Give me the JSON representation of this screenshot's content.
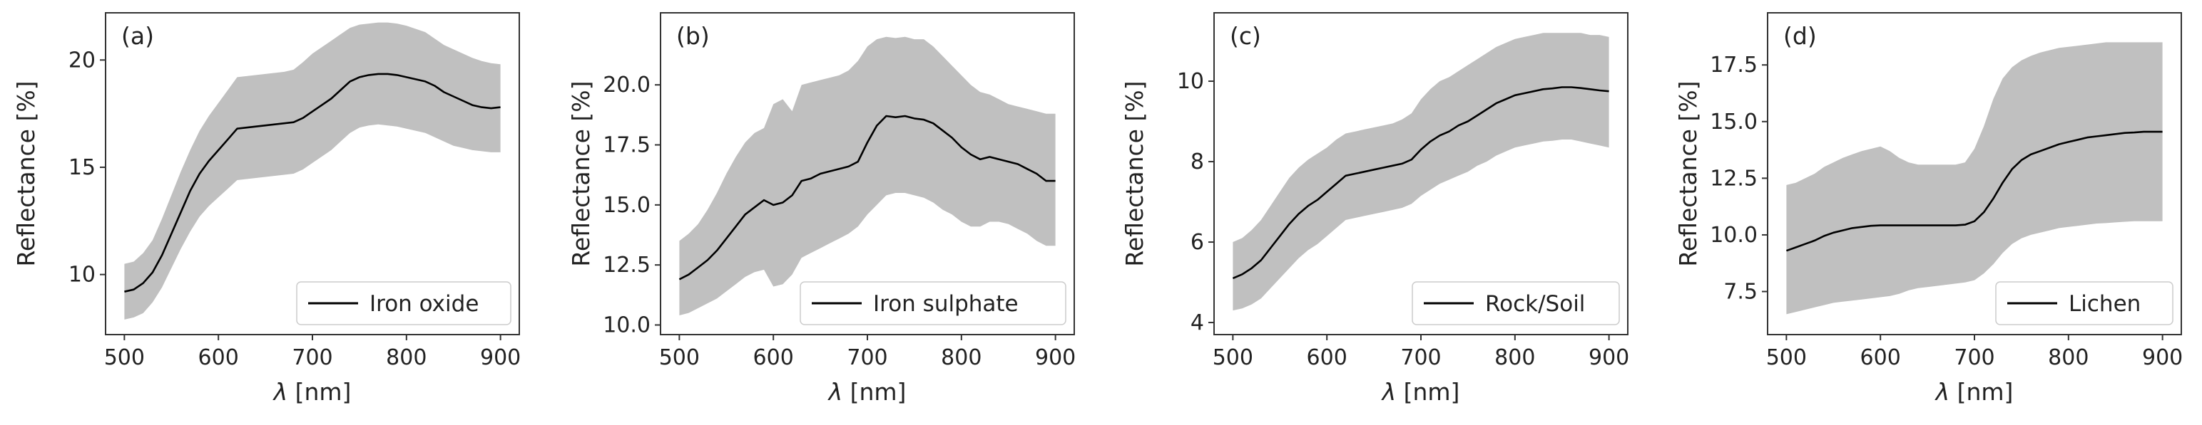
{
  "figure": {
    "colors": {
      "band": "#c0c0c0",
      "line": "#000000",
      "frame": "#333333",
      "legend_frame": "#cccccc"
    }
  },
  "chart_data": [
    {
      "type": "line",
      "panel_tag": "(a)",
      "xlabel_symbol": "λ",
      "xlabel_unit": " [nm]",
      "ylabel": "Reflectance [%]",
      "legend": [
        "Iron oxide"
      ],
      "legend_position": "lower-right",
      "xlim": [
        480,
        920
      ],
      "ylim": [
        7.2,
        22.2
      ],
      "xticks": [
        500,
        600,
        700,
        800,
        900
      ],
      "xtick_labels": [
        "500",
        "600",
        "700",
        "800",
        "900"
      ],
      "yticks": [
        10,
        15,
        20
      ],
      "ytick_labels": [
        "10",
        "15",
        "20"
      ],
      "x": [
        500,
        510,
        520,
        530,
        540,
        550,
        560,
        570,
        580,
        590,
        600,
        610,
        620,
        630,
        640,
        650,
        660,
        670,
        680,
        690,
        700,
        710,
        720,
        730,
        740,
        750,
        760,
        770,
        780,
        790,
        800,
        810,
        820,
        830,
        840,
        850,
        860,
        870,
        880,
        890,
        900
      ],
      "series": [
        {
          "name": "Iron oxide",
          "values": [
            9.2,
            9.3,
            9.6,
            10.1,
            10.9,
            11.9,
            12.9,
            13.9,
            14.7,
            15.3,
            15.8,
            16.3,
            16.8,
            16.85,
            16.9,
            16.95,
            17.0,
            17.05,
            17.1,
            17.3,
            17.6,
            17.9,
            18.2,
            18.6,
            19.0,
            19.2,
            19.3,
            19.35,
            19.35,
            19.3,
            19.2,
            19.1,
            19.0,
            18.8,
            18.5,
            18.3,
            18.1,
            17.9,
            17.8,
            17.75,
            17.8
          ]
        }
      ],
      "band_upper": [
        10.5,
        10.6,
        11.0,
        11.6,
        12.6,
        13.7,
        14.8,
        15.8,
        16.7,
        17.4,
        18.0,
        18.6,
        19.2,
        19.25,
        19.3,
        19.35,
        19.4,
        19.45,
        19.55,
        19.9,
        20.3,
        20.6,
        20.9,
        21.2,
        21.5,
        21.65,
        21.7,
        21.75,
        21.75,
        21.7,
        21.6,
        21.45,
        21.3,
        21.0,
        20.7,
        20.5,
        20.3,
        20.1,
        19.95,
        19.85,
        19.8
      ],
      "band_lower": [
        7.9,
        8.0,
        8.2,
        8.7,
        9.4,
        10.3,
        11.2,
        12.0,
        12.7,
        13.2,
        13.6,
        14.0,
        14.4,
        14.45,
        14.5,
        14.55,
        14.6,
        14.65,
        14.7,
        14.9,
        15.2,
        15.5,
        15.8,
        16.2,
        16.6,
        16.85,
        16.95,
        17.0,
        16.95,
        16.9,
        16.8,
        16.7,
        16.6,
        16.4,
        16.2,
        16.0,
        15.9,
        15.8,
        15.75,
        15.7,
        15.7
      ]
    },
    {
      "type": "line",
      "panel_tag": "(b)",
      "xlabel_symbol": "λ",
      "xlabel_unit": " [nm]",
      "ylabel": "Reflectance [%]",
      "legend": [
        "Iron sulphate"
      ],
      "legend_position": "lower-right",
      "xlim": [
        480,
        920
      ],
      "ylim": [
        9.6,
        23.0
      ],
      "xticks": [
        500,
        600,
        700,
        800,
        900
      ],
      "xtick_labels": [
        "500",
        "600",
        "700",
        "800",
        "900"
      ],
      "yticks": [
        10.0,
        12.5,
        15.0,
        17.5,
        20.0
      ],
      "ytick_labels": [
        "10.0",
        "12.5",
        "15.0",
        "17.5",
        "20.0"
      ],
      "x": [
        500,
        510,
        520,
        530,
        540,
        550,
        560,
        570,
        580,
        590,
        600,
        610,
        620,
        630,
        640,
        650,
        660,
        670,
        680,
        690,
        700,
        710,
        720,
        730,
        740,
        750,
        760,
        770,
        780,
        790,
        800,
        810,
        820,
        830,
        840,
        850,
        860,
        870,
        880,
        890,
        900
      ],
      "series": [
        {
          "name": "Iron sulphate",
          "values": [
            11.9,
            12.1,
            12.4,
            12.7,
            13.1,
            13.6,
            14.1,
            14.6,
            14.9,
            15.2,
            15.0,
            15.1,
            15.4,
            16.0,
            16.1,
            16.3,
            16.4,
            16.5,
            16.6,
            16.8,
            17.6,
            18.3,
            18.7,
            18.65,
            18.7,
            18.6,
            18.55,
            18.4,
            18.1,
            17.8,
            17.4,
            17.1,
            16.9,
            17.0,
            16.9,
            16.8,
            16.7,
            16.5,
            16.3,
            16.0,
            16.0
          ]
        }
      ],
      "band_upper": [
        13.5,
        13.8,
        14.2,
        14.8,
        15.5,
        16.3,
        17.0,
        17.6,
        18.0,
        18.2,
        19.2,
        19.4,
        18.9,
        20.0,
        20.1,
        20.2,
        20.3,
        20.4,
        20.6,
        21.0,
        21.6,
        21.9,
        22.0,
        21.95,
        22.0,
        21.9,
        21.9,
        21.6,
        21.2,
        20.8,
        20.4,
        20.0,
        19.7,
        19.6,
        19.4,
        19.2,
        19.1,
        19.0,
        18.9,
        18.8,
        18.8
      ],
      "band_lower": [
        10.4,
        10.5,
        10.7,
        10.9,
        11.1,
        11.4,
        11.7,
        12.0,
        12.2,
        12.3,
        11.6,
        11.7,
        12.1,
        12.8,
        13.0,
        13.2,
        13.4,
        13.6,
        13.8,
        14.1,
        14.6,
        15.0,
        15.4,
        15.5,
        15.5,
        15.4,
        15.3,
        15.1,
        14.8,
        14.6,
        14.3,
        14.1,
        14.1,
        14.3,
        14.3,
        14.2,
        14.0,
        13.8,
        13.5,
        13.3,
        13.3
      ]
    },
    {
      "type": "line",
      "panel_tag": "(c)",
      "xlabel_symbol": "λ",
      "xlabel_unit": " [nm]",
      "ylabel": "Reflectance [%]",
      "legend": [
        "Rock/Soil"
      ],
      "legend_position": "lower-right",
      "xlim": [
        480,
        920
      ],
      "ylim": [
        3.7,
        11.7
      ],
      "xticks": [
        500,
        600,
        700,
        800,
        900
      ],
      "xtick_labels": [
        "500",
        "600",
        "700",
        "800",
        "900"
      ],
      "yticks": [
        4,
        6,
        8,
        10
      ],
      "ytick_labels": [
        "4",
        "6",
        "8",
        "10"
      ],
      "x": [
        500,
        510,
        520,
        530,
        540,
        550,
        560,
        570,
        580,
        590,
        600,
        610,
        620,
        630,
        640,
        650,
        660,
        670,
        680,
        690,
        700,
        710,
        720,
        730,
        740,
        750,
        760,
        770,
        780,
        790,
        800,
        810,
        820,
        830,
        840,
        850,
        860,
        870,
        880,
        890,
        900
      ],
      "series": [
        {
          "name": "Rock/Soil",
          "values": [
            5.1,
            5.2,
            5.35,
            5.55,
            5.85,
            6.15,
            6.45,
            6.7,
            6.9,
            7.05,
            7.25,
            7.45,
            7.65,
            7.7,
            7.75,
            7.8,
            7.85,
            7.9,
            7.95,
            8.05,
            8.3,
            8.5,
            8.65,
            8.75,
            8.9,
            9.0,
            9.15,
            9.3,
            9.45,
            9.55,
            9.65,
            9.7,
            9.75,
            9.8,
            9.82,
            9.85,
            9.85,
            9.83,
            9.8,
            9.77,
            9.75
          ]
        }
      ],
      "band_upper": [
        6.0,
        6.1,
        6.3,
        6.55,
        6.9,
        7.25,
        7.6,
        7.85,
        8.05,
        8.2,
        8.35,
        8.55,
        8.7,
        8.75,
        8.8,
        8.85,
        8.9,
        8.95,
        9.05,
        9.2,
        9.55,
        9.8,
        10.0,
        10.1,
        10.25,
        10.4,
        10.55,
        10.7,
        10.85,
        10.95,
        11.05,
        11.1,
        11.15,
        11.2,
        11.2,
        11.2,
        11.2,
        11.2,
        11.15,
        11.15,
        11.1
      ],
      "band_lower": [
        4.3,
        4.35,
        4.45,
        4.6,
        4.85,
        5.1,
        5.35,
        5.6,
        5.8,
        5.95,
        6.15,
        6.35,
        6.55,
        6.6,
        6.65,
        6.7,
        6.75,
        6.8,
        6.85,
        6.95,
        7.15,
        7.3,
        7.45,
        7.55,
        7.65,
        7.75,
        7.9,
        8.0,
        8.15,
        8.25,
        8.35,
        8.4,
        8.45,
        8.5,
        8.52,
        8.55,
        8.55,
        8.5,
        8.45,
        8.4,
        8.35
      ]
    },
    {
      "type": "line",
      "panel_tag": "(d)",
      "xlabel_symbol": "λ",
      "xlabel_unit": " [nm]",
      "ylabel": "Reflectance [%]",
      "legend": [
        "Lichen"
      ],
      "legend_position": "lower-right",
      "xlim": [
        480,
        920
      ],
      "ylim": [
        5.6,
        19.8
      ],
      "xticks": [
        500,
        600,
        700,
        800,
        900
      ],
      "xtick_labels": [
        "500",
        "600",
        "700",
        "800",
        "900"
      ],
      "yticks": [
        7.5,
        10.0,
        12.5,
        15.0,
        17.5
      ],
      "ytick_labels": [
        "7.5",
        "10.0",
        "12.5",
        "15.0",
        "17.5"
      ],
      "x": [
        500,
        510,
        520,
        530,
        540,
        550,
        560,
        570,
        580,
        590,
        600,
        610,
        620,
        630,
        640,
        650,
        660,
        670,
        680,
        690,
        700,
        710,
        720,
        730,
        740,
        750,
        760,
        770,
        780,
        790,
        800,
        810,
        820,
        830,
        840,
        850,
        860,
        870,
        880,
        890,
        900
      ],
      "series": [
        {
          "name": "Lichen",
          "values": [
            9.3,
            9.45,
            9.6,
            9.75,
            9.95,
            10.1,
            10.2,
            10.3,
            10.35,
            10.4,
            10.42,
            10.42,
            10.42,
            10.42,
            10.42,
            10.42,
            10.42,
            10.42,
            10.42,
            10.45,
            10.6,
            11.0,
            11.6,
            12.3,
            12.9,
            13.3,
            13.55,
            13.7,
            13.85,
            14.0,
            14.1,
            14.2,
            14.3,
            14.35,
            14.4,
            14.45,
            14.5,
            14.52,
            14.55,
            14.55,
            14.55
          ]
        }
      ],
      "band_upper": [
        12.2,
        12.3,
        12.5,
        12.7,
        13.0,
        13.2,
        13.4,
        13.55,
        13.7,
        13.8,
        13.9,
        13.7,
        13.4,
        13.2,
        13.1,
        13.1,
        13.1,
        13.1,
        13.1,
        13.2,
        13.8,
        14.8,
        16.0,
        16.9,
        17.4,
        17.7,
        17.9,
        18.05,
        18.15,
        18.25,
        18.3,
        18.35,
        18.4,
        18.45,
        18.5,
        18.5,
        18.5,
        18.5,
        18.5,
        18.5,
        18.5
      ],
      "band_lower": [
        6.5,
        6.6,
        6.7,
        6.8,
        6.9,
        7.0,
        7.05,
        7.1,
        7.15,
        7.2,
        7.25,
        7.3,
        7.4,
        7.55,
        7.65,
        7.7,
        7.75,
        7.8,
        7.85,
        7.9,
        8.0,
        8.3,
        8.7,
        9.2,
        9.6,
        9.85,
        10.0,
        10.1,
        10.2,
        10.3,
        10.35,
        10.4,
        10.45,
        10.5,
        10.52,
        10.55,
        10.58,
        10.6,
        10.6,
        10.6,
        10.6
      ]
    }
  ]
}
